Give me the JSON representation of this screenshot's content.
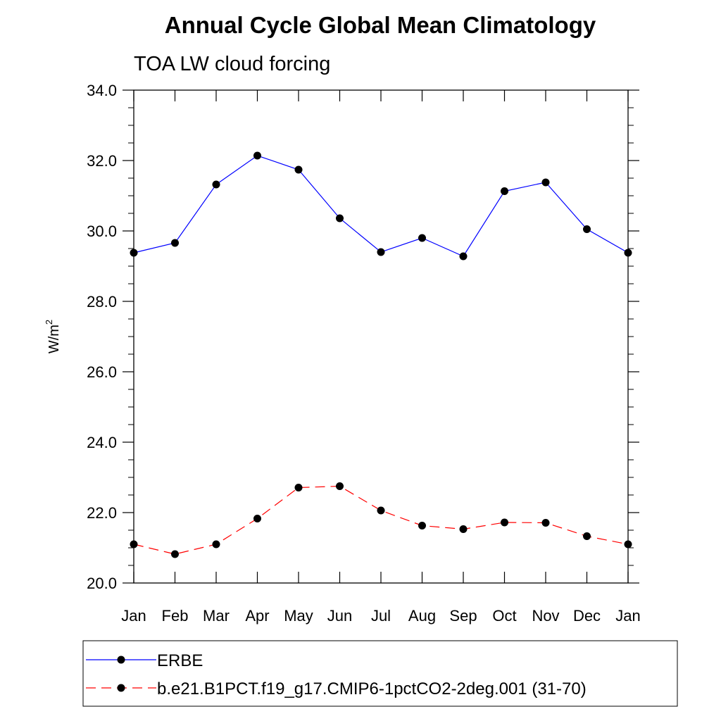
{
  "chart_data": {
    "type": "line",
    "title": "Annual Cycle Global Mean Climatology",
    "subtitle": "TOA LW cloud forcing",
    "xlabel": "",
    "ylabel": "W/m",
    "ylabel_sup": "2",
    "ylim": [
      20.0,
      34.0
    ],
    "yticks": [
      "20.0",
      "22.0",
      "24.0",
      "26.0",
      "28.0",
      "30.0",
      "32.0",
      "34.0"
    ],
    "categories": [
      "Jan",
      "Feb",
      "Mar",
      "Apr",
      "May",
      "Jun",
      "Jul",
      "Aug",
      "Sep",
      "Oct",
      "Nov",
      "Dec",
      "Jan"
    ],
    "series": [
      {
        "name": "ERBE",
        "color": "#0000ff",
        "dash": "solid",
        "values": [
          29.38,
          29.66,
          31.32,
          32.14,
          31.74,
          30.36,
          29.4,
          29.8,
          29.28,
          31.13,
          31.38,
          30.05,
          29.38
        ]
      },
      {
        "name": "b.e21.B1PCT.f19_g17.CMIP6-1pctCO2-2deg.001 (31-70)",
        "color": "#ff0000",
        "dash": "dashed",
        "values": [
          21.1,
          20.82,
          21.1,
          21.83,
          22.71,
          22.75,
          22.06,
          21.63,
          21.53,
          21.72,
          21.71,
          21.33,
          21.1
        ]
      }
    ],
    "legend_position": "bottom"
  }
}
